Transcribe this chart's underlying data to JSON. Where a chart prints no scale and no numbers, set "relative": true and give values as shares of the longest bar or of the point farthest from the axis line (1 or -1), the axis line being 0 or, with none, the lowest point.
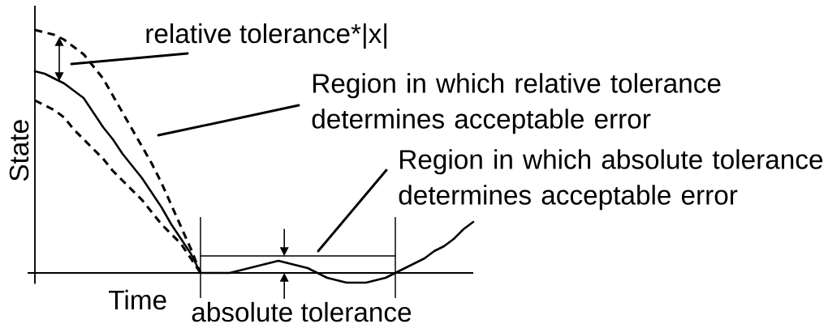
{
  "chart_data": {
    "type": "line",
    "relative": true,
    "xlabel": "Time",
    "ylabel": "State",
    "marker": "none",
    "categories": [
      null,
      null,
      null,
      null,
      null,
      null,
      null,
      null,
      null,
      null,
      null,
      null,
      null,
      null,
      null,
      null,
      null,
      null,
      null,
      null,
      null,
      null,
      null,
      null,
      null,
      null,
      null,
      null,
      null,
      null,
      null,
      null,
      null,
      null,
      null,
      null,
      null,
      null,
      null,
      null,
      null,
      null,
      null,
      null,
      null,
      null
    ],
    "series": [
      {
        "color": "#000000",
        "line_style": "solid",
        "values": [
          0.83,
          0.82,
          0.8,
          0.78,
          0.75,
          0.72,
          0.66,
          0.6,
          0.55,
          0.49,
          0.44,
          0.39,
          0.33,
          0.27,
          0.2,
          0.14,
          0.08,
          0,
          0,
          0,
          0,
          0.01,
          0.02,
          0.03,
          0.04,
          0.05,
          0.04,
          0.03,
          0.02,
          0,
          -0.02,
          -0.03,
          -0.04,
          -0.04,
          -0.04,
          -0.03,
          -0.02,
          0,
          0.02,
          0.04,
          0.06,
          0.09,
          0.11,
          0.14,
          0.18,
          0.21
        ]
      },
      {
        "color": "#000000",
        "line_style": "dashed",
        "values": [
          1,
          0.99,
          0.98,
          0.96,
          0.93,
          0.9,
          0.85,
          0.8,
          0.73,
          0.66,
          0.59,
          0.52,
          0.45,
          0.37,
          0.28,
          0.19,
          0.1,
          0,
          null,
          null,
          null,
          null,
          null,
          null,
          null,
          null,
          null,
          null,
          null,
          null,
          null,
          null,
          null,
          null,
          null,
          null,
          null,
          null,
          null,
          null,
          null,
          null,
          null,
          null,
          null,
          null
        ]
      },
      {
        "color": "#000000",
        "line_style": "dashed",
        "values": [
          0.71,
          0.69,
          0.67,
          0.64,
          0.59,
          0.55,
          0.51,
          0.47,
          0.42,
          0.38,
          0.34,
          0.3,
          0.25,
          0.2,
          0.16,
          0.12,
          0.06,
          0,
          null,
          null,
          null,
          null,
          null,
          null,
          null,
          null,
          null,
          null,
          null,
          null,
          null,
          null,
          null,
          null,
          null,
          null,
          null,
          null,
          null,
          null,
          null,
          null,
          null,
          null,
          null,
          null
        ]
      },
      {
        "color": "#000000",
        "line_style": "solid",
        "values": [
          null,
          null,
          null,
          null,
          null,
          null,
          null,
          null,
          null,
          null,
          null,
          null,
          null,
          null,
          null,
          null,
          null,
          0.07,
          0.07,
          0.07,
          0.07,
          0.07,
          0.07,
          0.07,
          0.07,
          0.07,
          0.07,
          0.07,
          0.07,
          0.07,
          0.07,
          0.07,
          0.07,
          0.07,
          0.07,
          0.07,
          0.07,
          0.07,
          null,
          null,
          null,
          null,
          null,
          null,
          null,
          null
        ]
      }
    ],
    "annotations": [
      "relative tolerance*|x|",
      "Region in which relative tolerance determines acceptable error",
      "Region in which absolute tolerance determines acceptable error",
      "absolute tolerance"
    ]
  }
}
